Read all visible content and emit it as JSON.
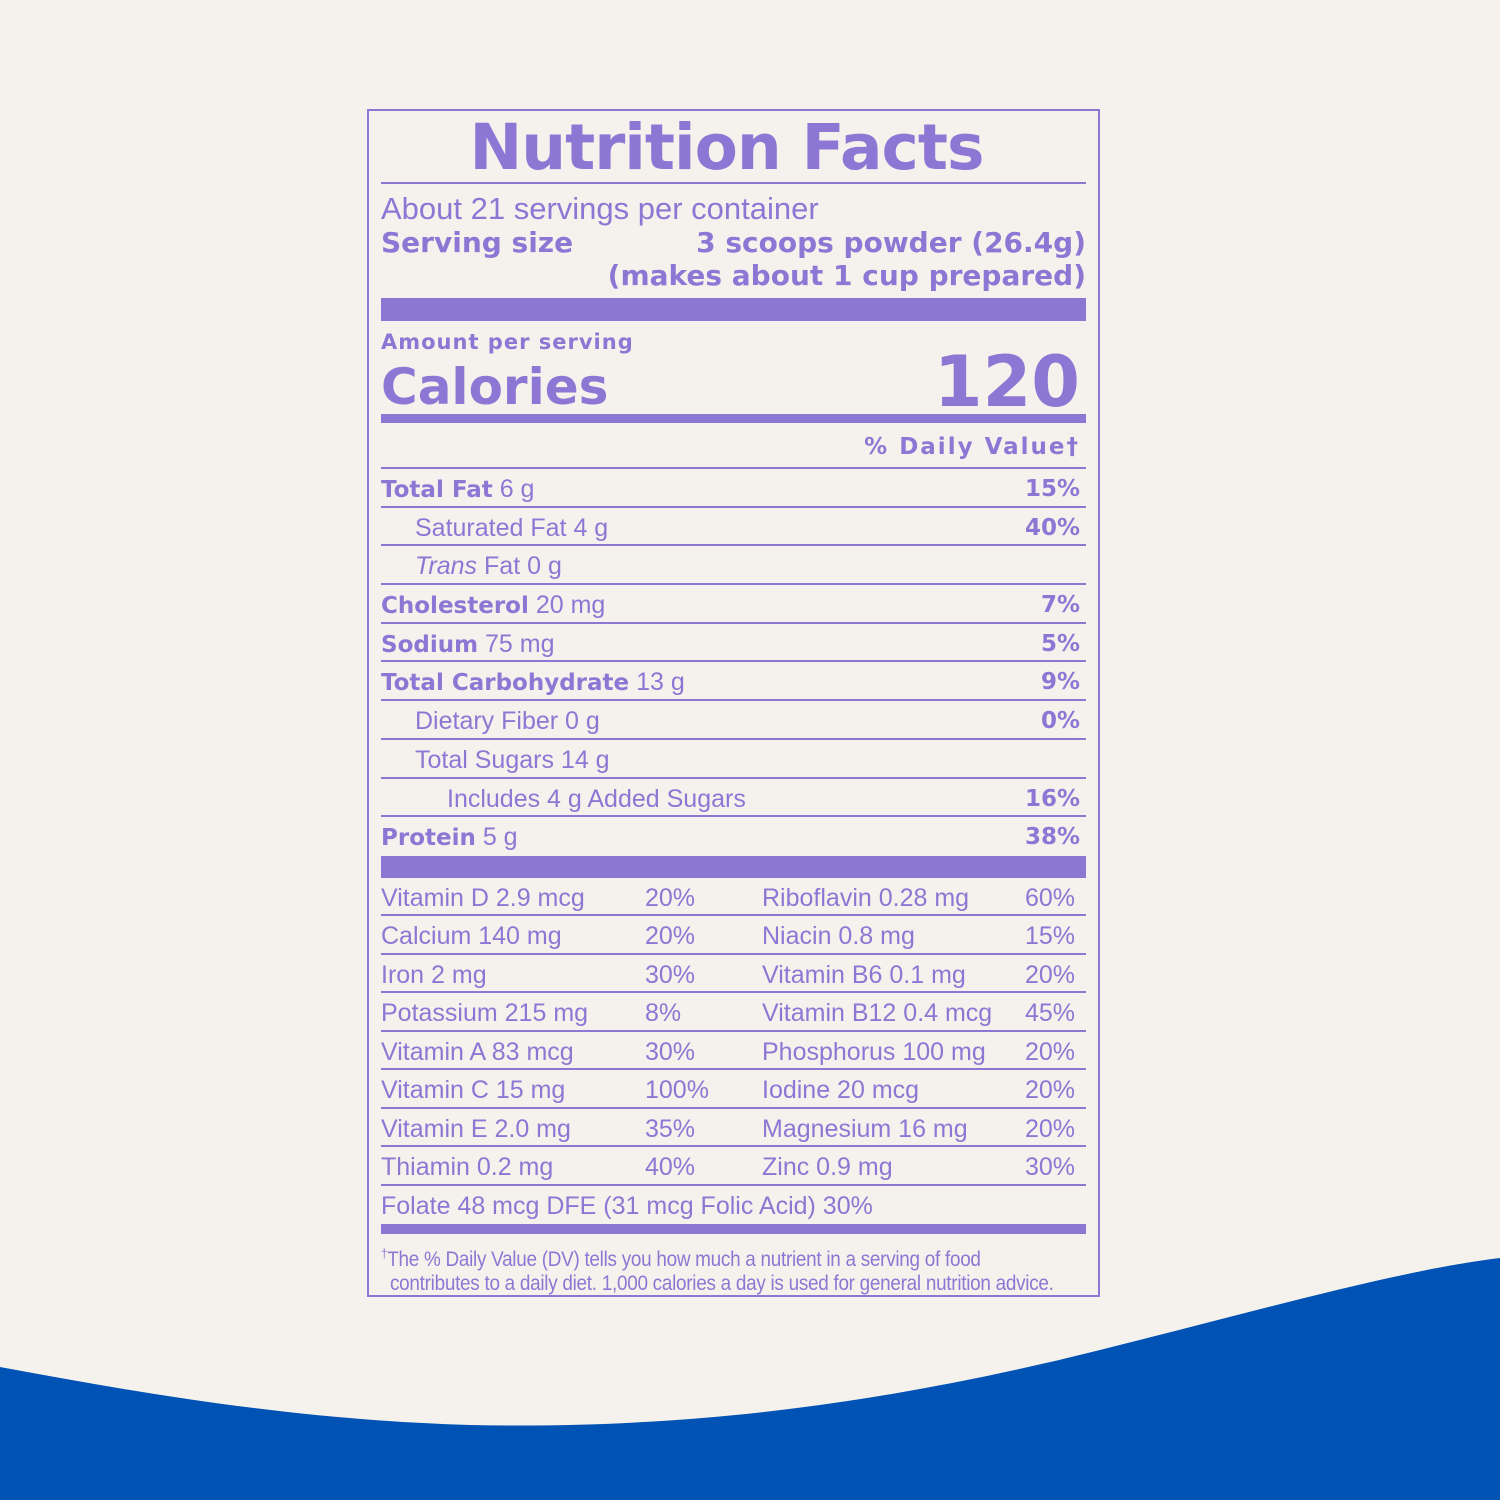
{
  "colors": {
    "accent": "#8e77d4",
    "background": "#f5f1ec",
    "wave": "#0052b4"
  },
  "title": "Nutrition Facts",
  "servings": "About 21 servings per container",
  "serving_size": {
    "label": "Serving size",
    "value": "3 scoops powder (26.4g)",
    "note": "(makes about 1 cup prepared)"
  },
  "amount_per_serving": "Amount per serving",
  "calories": {
    "label": "Calories",
    "value": "120"
  },
  "daily_value_header": "% Daily Value†",
  "nutrients": [
    {
      "name": "Total Fat",
      "amount": "6 g",
      "dv": "15%",
      "bold": true,
      "indent": 0
    },
    {
      "name": "Saturated Fat",
      "amount": "4 g",
      "dv": "40%",
      "bold": false,
      "indent": 1
    },
    {
      "name": "Trans",
      "name_rest": "Fat",
      "amount": "0 g",
      "dv": "",
      "bold": false,
      "indent": 1,
      "italic": true
    },
    {
      "name": "Cholesterol",
      "amount": "20 mg",
      "dv": "7%",
      "bold": true,
      "indent": 0
    },
    {
      "name": "Sodium",
      "amount": "75 mg",
      "dv": "5%",
      "bold": true,
      "indent": 0
    },
    {
      "name": "Total Carbohydrate",
      "amount": "13 g",
      "dv": "9%",
      "bold": true,
      "indent": 0
    },
    {
      "name": "Dietary Fiber",
      "amount": "0 g",
      "dv": "0%",
      "bold": false,
      "indent": 1
    },
    {
      "name": "Total Sugars",
      "amount": "14 g",
      "dv": "",
      "bold": false,
      "indent": 1
    },
    {
      "name": "Includes 4 g Added Sugars",
      "amount": "",
      "dv": "16%",
      "bold": false,
      "indent": 2
    },
    {
      "name": "Protein",
      "amount": "5 g",
      "dv": "38%",
      "bold": true,
      "indent": 0
    }
  ],
  "vitamins": [
    [
      "Vitamin D 2.9 mcg",
      "20%",
      "Riboflavin 0.28 mg",
      "60%"
    ],
    [
      "Calcium 140 mg",
      "20%",
      "Niacin 0.8 mg",
      "15%"
    ],
    [
      "Iron 2 mg",
      "30%",
      "Vitamin B6 0.1 mg",
      "20%"
    ],
    [
      "Potassium 215 mg",
      "8%",
      "Vitamin B12 0.4 mcg",
      "45%"
    ],
    [
      "Vitamin A 83 mcg",
      "30%",
      "Phosphorus 100 mg",
      "20%"
    ],
    [
      "Vitamin C 15 mg",
      "100%",
      "Iodine 20 mcg",
      "20%"
    ],
    [
      "Vitamin E 2.0 mg",
      "35%",
      "Magnesium 16 mg",
      "20%"
    ],
    [
      "Thiamin 0.2 mg",
      "40%",
      "Zinc 0.9 mg",
      "30%"
    ]
  ],
  "folate": "Folate 48 mcg DFE (31 mcg Folic Acid) 30%",
  "footnote": {
    "mark": "†",
    "line1": "The % Daily Value (DV) tells you how much a nutrient in a serving of food",
    "line2": "contributes to a daily diet. 1,000 calories a day is used for general nutrition advice."
  }
}
